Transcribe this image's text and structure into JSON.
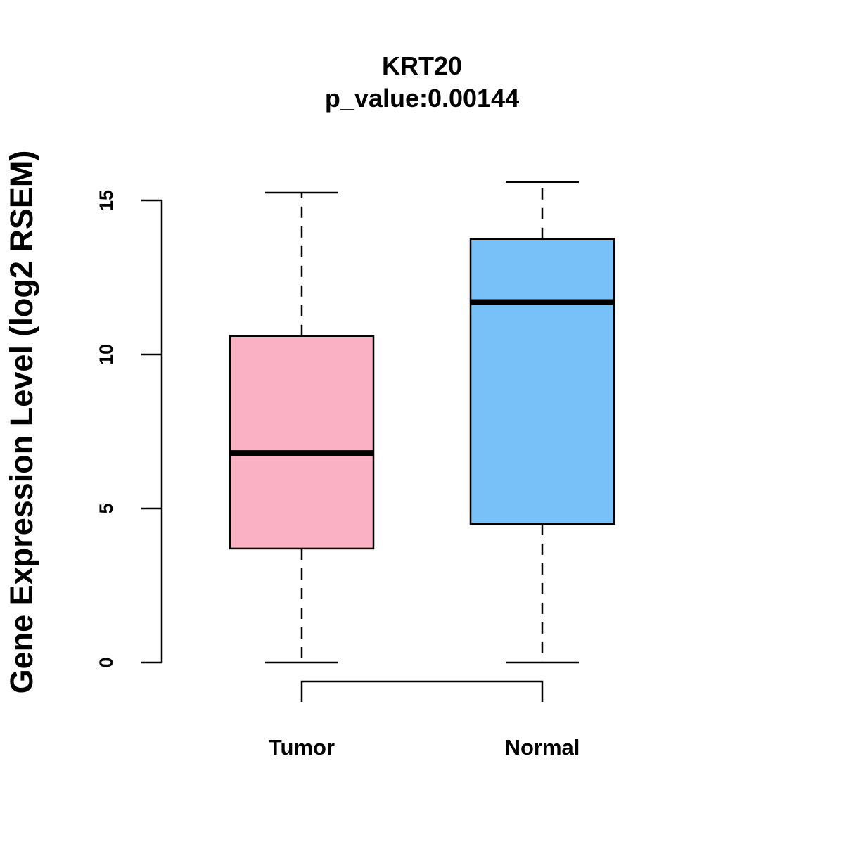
{
  "chart_data": {
    "type": "boxplot",
    "title": "KRT20",
    "subtitle": "p_value:0.00144",
    "xlabel": "",
    "ylabel": "Gene Expression Level (log2 RSEM)",
    "ylim": [
      0,
      15.6
    ],
    "yticks": [
      0,
      5,
      10,
      15
    ],
    "ytick_labels": [
      "0",
      "5",
      "10",
      "15"
    ],
    "grid": false,
    "categories": [
      "Tumor",
      "Normal"
    ],
    "boxes": [
      {
        "name": "Tumor",
        "whisker_low": 0,
        "q1": 3.7,
        "median": 6.8,
        "q3": 10.6,
        "whisker_high": 15.25,
        "color": "#FBB1C4"
      },
      {
        "name": "Normal",
        "whisker_low": 0,
        "q1": 4.5,
        "median": 11.7,
        "q3": 13.75,
        "whisker_high": 15.6,
        "color": "#77C1F8"
      }
    ],
    "comparison_bracket": [
      "Tumor",
      "Normal"
    ]
  }
}
